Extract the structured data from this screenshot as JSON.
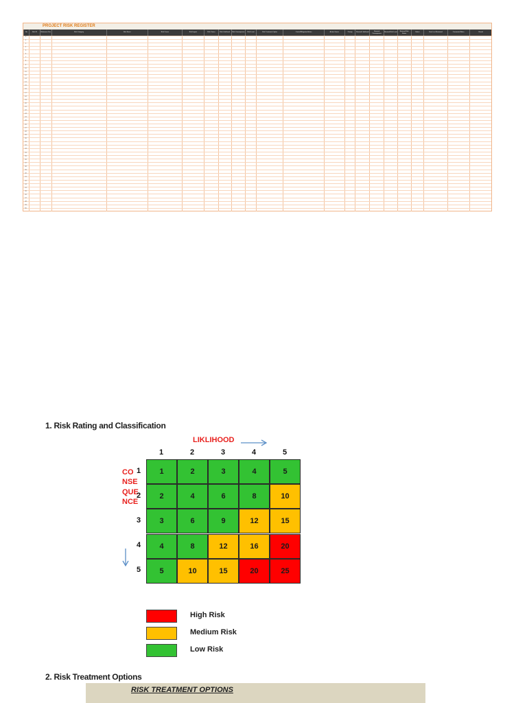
{
  "register": {
    "title": "PROJECT RISK REGISTER",
    "columns": [
      "No.",
      "Risk ID",
      "Reference Doc",
      "Risk Category",
      "Risk Event",
      "Risk Cause",
      "Risk Impact",
      "Risk Owner",
      "Risk Likelihood",
      "Risk Consequence",
      "Risk Level",
      "Risk Treatment Option",
      "Control/Mitigation Action",
      "Action Owner",
      "Priority",
      "Revised Likelihood",
      "Revised Consequence",
      "Revised Risk Level",
      "Revised Risk Status",
      "Status",
      "Date Last Reviewed",
      "Comments/Notes",
      "Closed"
    ],
    "row_numbers": [
      "1",
      "2",
      "3",
      "4",
      "5",
      "6",
      "7",
      "8",
      "9",
      "10",
      "11",
      "12",
      "13",
      "14",
      "15",
      "16",
      "17",
      "18",
      "19",
      "20",
      "21",
      "22",
      "23",
      "24",
      "25",
      "26",
      "27",
      "28",
      "29",
      "30",
      "31",
      "32",
      "33",
      "34",
      "35",
      "36",
      "37",
      "38",
      "39",
      "40",
      "41",
      "42",
      "43",
      "44",
      "45",
      "46",
      "47",
      "48",
      "49",
      "50"
    ]
  },
  "rating": {
    "heading": "1. Risk Rating and Classification",
    "likelihood_label": "LIKLIHOOD",
    "consequence_label": "CONSEQUENCE",
    "column_headers": [
      "1",
      "2",
      "3",
      "4",
      "5"
    ],
    "row_headers": [
      "1",
      "2",
      "3",
      "4",
      "5"
    ],
    "matrix": [
      [
        "1",
        "2",
        "3",
        "4",
        "5"
      ],
      [
        "2",
        "4",
        "6",
        "8",
        "10"
      ],
      [
        "3",
        "6",
        "9",
        "12",
        "15"
      ],
      [
        "4",
        "8",
        "12",
        "16",
        "20"
      ],
      [
        "5",
        "10",
        "15",
        "20",
        "25"
      ]
    ],
    "colors": {
      "high": "#ff0000",
      "medium": "#ffc000",
      "low": "#33c233"
    }
  },
  "legend": {
    "items": [
      {
        "label": "High Risk",
        "color": "#ff0000"
      },
      {
        "label": "Medium Risk",
        "color": "#ffc000"
      },
      {
        "label": "Low Risk",
        "color": "#33c233"
      }
    ]
  },
  "treatment": {
    "heading": "2. Risk Treatment Options",
    "title": "RISK TREATMENT OPTIONS"
  }
}
